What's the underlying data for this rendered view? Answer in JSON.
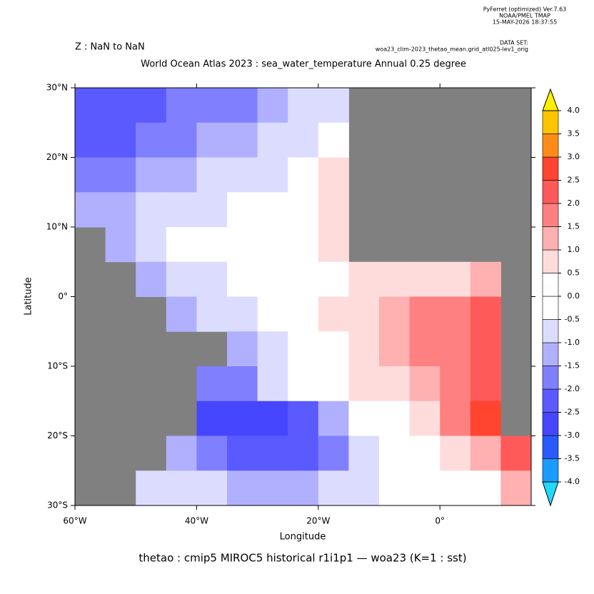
{
  "chart_data": {
    "type": "heatmap",
    "header": [
      "PyFerret (optimized) Ver.7.63",
      "NOAA/PMEL TMAP",
      "15-MAY-2026 18:37:55"
    ],
    "dataset_label": "DATA SET:",
    "dataset": "woa23_clim-2023_thetao_mean.grid_atl025-lev1_orig",
    "z_range": "Z : NaN to NaN",
    "title": "World Ocean Atlas 2023 : sea_water_temperature Annual  0.25 degree",
    "caption": "thetao : cmip5 MIROC5 historical r1i1p1 — woa23  (K=1 : sst)",
    "xlabel": "Longitude",
    "ylabel": "Latitude",
    "xlim": [
      -60,
      15
    ],
    "ylim": [
      -30,
      30
    ],
    "xticks": [
      {
        "value": -60,
        "label": "60°W"
      },
      {
        "value": -40,
        "label": "40°W"
      },
      {
        "value": -20,
        "label": "20°W"
      },
      {
        "value": 0,
        "label": "0°"
      }
    ],
    "yticks": [
      {
        "value": 30,
        "label": "30°N"
      },
      {
        "value": 20,
        "label": "20°N"
      },
      {
        "value": 10,
        "label": "10°N"
      },
      {
        "value": 0,
        "label": "0°"
      },
      {
        "value": -10,
        "label": "10°S"
      },
      {
        "value": -20,
        "label": "20°S"
      },
      {
        "value": -30,
        "label": "30°S"
      }
    ],
    "x": [
      -57.5,
      -52.5,
      -47.5,
      -42.5,
      -37.5,
      -32.5,
      -27.5,
      -22.5,
      -17.5,
      -12.5,
      -7.5,
      -2.5,
      2.5,
      7.5,
      12.5
    ],
    "y": [
      27.5,
      22.5,
      17.5,
      12.5,
      7.5,
      2.5,
      -2.5,
      -7.5,
      -12.5,
      -17.5,
      -22.5,
      -27.5
    ],
    "z": [
      [
        -2.3,
        -2.3,
        -2.2,
        -2.0,
        -1.8,
        -1.6,
        -1.3,
        -1.0,
        -0.7,
        null,
        null,
        null,
        null,
        null,
        null
      ],
      [
        -2.2,
        -2.1,
        -2.0,
        -1.8,
        -1.5,
        -1.3,
        -1.0,
        -0.8,
        -0.3,
        null,
        null,
        null,
        null,
        null,
        null
      ],
      [
        -1.8,
        -1.6,
        -1.4,
        -1.2,
        -1.0,
        -0.8,
        -0.6,
        -0.3,
        0.6,
        null,
        null,
        null,
        null,
        null,
        null
      ],
      [
        -1.5,
        -1.2,
        -1.0,
        -0.8,
        -0.6,
        -0.2,
        0.1,
        0.3,
        0.8,
        null,
        null,
        null,
        null,
        null,
        null
      ],
      [
        null,
        -1.2,
        -0.8,
        -0.5,
        -0.2,
        0.0,
        0.2,
        0.4,
        0.6,
        null,
        null,
        null,
        null,
        null,
        null
      ],
      [
        null,
        null,
        -1.2,
        -1.0,
        -0.6,
        -0.3,
        0.0,
        0.2,
        0.4,
        0.5,
        0.6,
        0.8,
        0.8,
        1.0,
        null
      ],
      [
        null,
        null,
        null,
        -1.2,
        -1.0,
        -0.6,
        -0.2,
        0.2,
        0.5,
        0.8,
        1.2,
        1.5,
        1.8,
        2.2,
        null
      ],
      [
        null,
        null,
        null,
        null,
        null,
        -1.3,
        -0.8,
        -0.2,
        0.3,
        0.7,
        1.0,
        1.5,
        1.8,
        2.0,
        null
      ],
      [
        null,
        null,
        null,
        null,
        -1.8,
        -1.6,
        -1.0,
        -0.4,
        0.0,
        0.5,
        0.8,
        1.3,
        1.8,
        2.2,
        null
      ],
      [
        null,
        null,
        null,
        null,
        -2.8,
        -2.8,
        -2.6,
        -2.2,
        -1.4,
        -0.5,
        0.0,
        0.8,
        1.5,
        2.5,
        null
      ],
      [
        null,
        null,
        null,
        -1.4,
        -2.0,
        -2.2,
        -2.3,
        -2.2,
        -1.8,
        -1.0,
        -0.4,
        0.0,
        0.5,
        1.0,
        2.0
      ],
      [
        null,
        null,
        -0.6,
        -0.8,
        -1.0,
        -1.2,
        -1.3,
        -1.3,
        -1.0,
        -0.7,
        -0.5,
        -0.2,
        0.0,
        0.3,
        1.0
      ]
    ],
    "land_color": "#808080",
    "levels": [
      {
        "value": -4,
        "label": "-4.0"
      },
      {
        "value": -3.5,
        "label": "-3.5"
      },
      {
        "value": -3,
        "label": "-3.0"
      },
      {
        "value": -2.5,
        "label": "-2.5"
      },
      {
        "value": -2,
        "label": "-2.0"
      },
      {
        "value": -1.5,
        "label": "-1.5"
      },
      {
        "value": -1,
        "label": "-1.0"
      },
      {
        "value": -0.5,
        "label": "-0.5"
      },
      {
        "value": 0,
        "label": "0.0"
      },
      {
        "value": 0.5,
        "label": "0.5"
      },
      {
        "value": 1,
        "label": "1.0"
      },
      {
        "value": 1.5,
        "label": "1.5"
      },
      {
        "value": 2,
        "label": "2.0"
      },
      {
        "value": 2.5,
        "label": "2.5"
      },
      {
        "value": 3,
        "label": "3.0"
      },
      {
        "value": 3.5,
        "label": "3.5"
      },
      {
        "value": 4,
        "label": "4.0"
      }
    ],
    "colors": [
      "#1a9cff",
      "#2a5aff",
      "#4646ff",
      "#5a5aff",
      "#8080ff",
      "#b0b0ff",
      "#dcdcff",
      "#ffffff",
      "#ffffff",
      "#ffdcdc",
      "#ffb0b0",
      "#ff8080",
      "#ff5a5a",
      "#ff4430",
      "#ff8c1a",
      "#ffc400"
    ],
    "under_color": "#22d8ff",
    "over_color": "#ffee00"
  }
}
